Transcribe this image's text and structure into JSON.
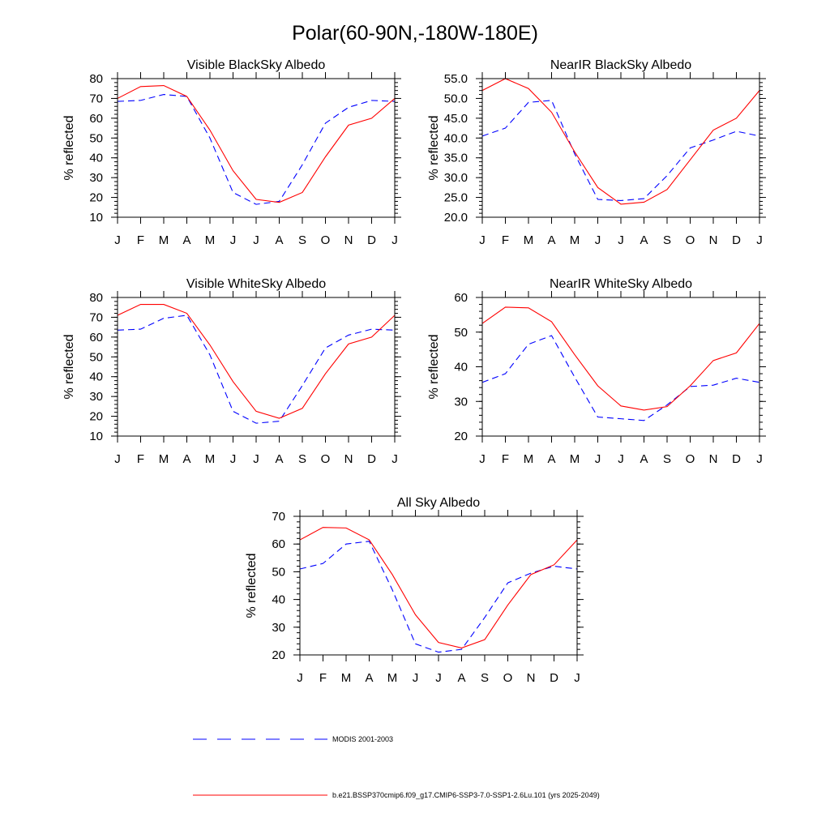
{
  "page": {
    "title": "Polar(60-90N,-180W-180E)"
  },
  "legend": [
    {
      "label": "MODIS 2001-2003",
      "color": "#0000ff",
      "dash": "dashed"
    },
    {
      "label": "b.e21.BSSP370cmip6.f09_g17.CMIP6-SSP3-7.0-SSP1-2.6Lu.101 (yrs 2025-2049)",
      "color": "#ff0000",
      "dash": "solid"
    }
  ],
  "chart_data": [
    {
      "type": "line",
      "title": "Visible BlackSky Albedo",
      "ylabel": "% reflected",
      "xlabel": "",
      "x": [
        "J",
        "F",
        "M",
        "A",
        "M",
        "J",
        "J",
        "A",
        "S",
        "O",
        "N",
        "D",
        "J"
      ],
      "ylim": [
        10,
        80
      ],
      "yticks": [
        10,
        20,
        30,
        40,
        50,
        60,
        70,
        80
      ],
      "ytick_labels": [
        "10",
        "20",
        "30",
        "40",
        "50",
        "60",
        "70",
        "80"
      ],
      "y_minor_step": 2,
      "series": [
        {
          "name": "MODIS 2001-2003",
          "color": "#0000ff",
          "dash": "dashed",
          "values": [
            68.5,
            69,
            72,
            71,
            50,
            22.5,
            16.5,
            18,
            36.5,
            57.5,
            65.5,
            69,
            68.5
          ]
        },
        {
          "name": "b.e21.BSSP370cmip6.f09_g17.CMIP6-SSP3-7.0-SSP1-2.6Lu.101 (yrs 2025-2049)",
          "color": "#ff0000",
          "dash": "solid",
          "values": [
            70,
            76,
            76.5,
            71,
            54,
            33.5,
            19,
            17.5,
            22.5,
            40.5,
            56.5,
            60,
            70
          ]
        }
      ]
    },
    {
      "type": "line",
      "title": "NearIR BlackSky Albedo",
      "ylabel": "% reflected",
      "xlabel": "",
      "x": [
        "J",
        "F",
        "M",
        "A",
        "M",
        "J",
        "J",
        "A",
        "S",
        "O",
        "N",
        "D",
        "J"
      ],
      "ylim": [
        20,
        55
      ],
      "yticks": [
        20,
        25,
        30,
        35,
        40,
        45,
        50,
        55
      ],
      "ytick_labels": [
        "20.0",
        "25.0",
        "30.0",
        "35.0",
        "40.0",
        "45.0",
        "50.0",
        "55.0"
      ],
      "y_minor_step": 1,
      "series": [
        {
          "name": "MODIS 2001-2003",
          "color": "#0000ff",
          "dash": "dashed",
          "values": [
            40.5,
            42.5,
            49,
            49.5,
            36,
            24.5,
            24.2,
            24.7,
            30.5,
            37.5,
            39.5,
            41.7,
            40.5
          ]
        },
        {
          "name": "b.e21.BSSP370cmip6.f09_g17.CMIP6-SSP3-7.0-SSP1-2.6Lu.101 (yrs 2025-2049)",
          "color": "#ff0000",
          "dash": "solid",
          "values": [
            52,
            55,
            52.5,
            46.5,
            36.5,
            27.5,
            23.3,
            23.8,
            27,
            34.5,
            42,
            45,
            52
          ]
        }
      ]
    },
    {
      "type": "line",
      "title": "Visible WhiteSky Albedo",
      "ylabel": "% reflected",
      "xlabel": "",
      "x": [
        "J",
        "F",
        "M",
        "A",
        "M",
        "J",
        "J",
        "A",
        "S",
        "O",
        "N",
        "D",
        "J"
      ],
      "ylim": [
        10,
        80
      ],
      "yticks": [
        10,
        20,
        30,
        40,
        50,
        60,
        70,
        80
      ],
      "ytick_labels": [
        "10",
        "20",
        "30",
        "40",
        "50",
        "60",
        "70",
        "80"
      ],
      "y_minor_step": 2,
      "series": [
        {
          "name": "MODIS 2001-2003",
          "color": "#0000ff",
          "dash": "dashed",
          "values": [
            63.5,
            64,
            69.5,
            71,
            51,
            22.5,
            16.5,
            17.5,
            35.5,
            54.5,
            61,
            64,
            63.5
          ]
        },
        {
          "name": "b.e21.BSSP370cmip6.f09_g17.CMIP6-SSP3-7.0-SSP1-2.6Lu.101 (yrs 2025-2049)",
          "color": "#ff0000",
          "dash": "solid",
          "values": [
            71,
            76.5,
            76.5,
            72,
            56,
            37.5,
            22.5,
            19,
            24,
            41.5,
            56.5,
            60,
            71
          ]
        }
      ]
    },
    {
      "type": "line",
      "title": "NearIR WhiteSky Albedo",
      "ylabel": "% reflected",
      "xlabel": "",
      "x": [
        "J",
        "F",
        "M",
        "A",
        "M",
        "J",
        "J",
        "A",
        "S",
        "O",
        "N",
        "D",
        "J"
      ],
      "ylim": [
        20,
        60
      ],
      "yticks": [
        20,
        30,
        40,
        50,
        60
      ],
      "ytick_labels": [
        "20",
        "30",
        "40",
        "50",
        "60"
      ],
      "y_minor_step": 2,
      "series": [
        {
          "name": "MODIS 2001-2003",
          "color": "#0000ff",
          "dash": "dashed",
          "values": [
            35.5,
            38,
            46.5,
            49,
            37,
            25.5,
            25,
            24.5,
            29,
            34.3,
            34.7,
            36.7,
            35.5
          ]
        },
        {
          "name": "b.e21.BSSP370cmip6.f09_g17.CMIP6-SSP3-7.0-SSP1-2.6Lu.101 (yrs 2025-2049)",
          "color": "#ff0000",
          "dash": "solid",
          "values": [
            52.5,
            57.2,
            57,
            53,
            43.5,
            34.5,
            28.7,
            27.5,
            28.5,
            34.5,
            41.8,
            44,
            52.5
          ]
        }
      ]
    },
    {
      "type": "line",
      "title": "All Sky Albedo",
      "ylabel": "% reflected",
      "xlabel": "",
      "x": [
        "J",
        "F",
        "M",
        "A",
        "M",
        "J",
        "J",
        "A",
        "S",
        "O",
        "N",
        "D",
        "J"
      ],
      "ylim": [
        20,
        70
      ],
      "yticks": [
        20,
        30,
        40,
        50,
        60,
        70
      ],
      "ytick_labels": [
        "20",
        "30",
        "40",
        "50",
        "60",
        "70"
      ],
      "y_minor_step": 2,
      "series": [
        {
          "name": "MODIS 2001-2003",
          "color": "#0000ff",
          "dash": "dashed",
          "values": [
            51,
            53,
            60,
            61,
            43.5,
            24,
            21,
            22,
            33.5,
            46,
            49.5,
            52,
            51
          ]
        },
        {
          "name": "b.e21.BSSP370cmip6.f09_g17.CMIP6-SSP3-7.0-SSP1-2.6Lu.101 (yrs 2025-2049)",
          "color": "#ff0000",
          "dash": "solid",
          "values": [
            61.5,
            66,
            65.8,
            61.5,
            49,
            34.5,
            24.5,
            22.5,
            25.5,
            38,
            49,
            52.5,
            61.5
          ]
        }
      ]
    }
  ]
}
